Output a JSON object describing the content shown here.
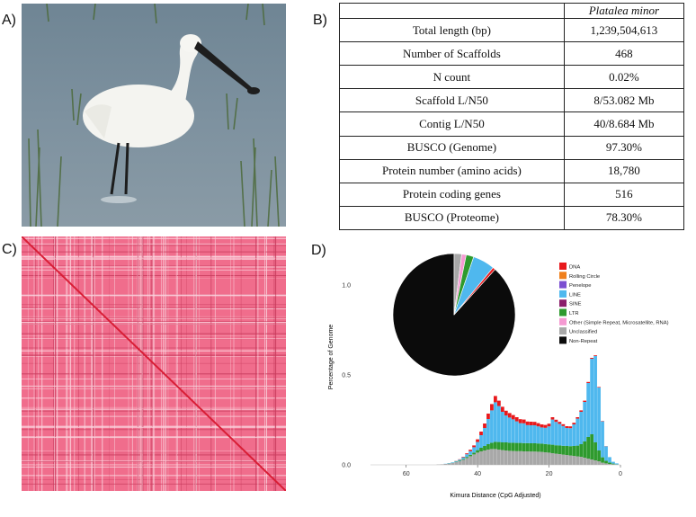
{
  "panels": {
    "a": "A)",
    "b": "B)",
    "c": "C)",
    "d": "D)"
  },
  "table": {
    "header_species": "Platalea minor",
    "rows": [
      {
        "metric": "Total length  (bp)",
        "value": "1,239,504,613"
      },
      {
        "metric": "Number of Scaffolds",
        "value": "468"
      },
      {
        "metric": "N count",
        "value": "0.02%"
      },
      {
        "metric": "Scaffold  L/N50",
        "value": "8/53.082 Mb"
      },
      {
        "metric": "Contig  L/N50",
        "value": "40/8.684 Mb"
      },
      {
        "metric": "BUSCO (Genome)",
        "value": "97.30%"
      },
      {
        "metric": "Protein number  (amino acids)",
        "value": "18,780"
      },
      {
        "metric": "Protein coding genes",
        "value": "516"
      },
      {
        "metric": "BUSCO (Proteome)",
        "value": "78.30%"
      }
    ]
  },
  "chart_data": {
    "type": "bar",
    "stacked": true,
    "xlabel": "Kimura Distance (CpG Adjusted)",
    "ylabel": "Percentage of Genome",
    "xlim": [
      70,
      0
    ],
    "ylim": [
      0,
      1.15
    ],
    "x_ticks": [
      "60",
      "40",
      "20",
      "0"
    ],
    "y_ticks": [
      "0.0",
      "0.5",
      "1.0"
    ],
    "legend_position": "right",
    "x": [
      51,
      50,
      49,
      48,
      47,
      46,
      45,
      44,
      43,
      42,
      41,
      40,
      39,
      38,
      37,
      36,
      35,
      34,
      33,
      32,
      31,
      30,
      29,
      28,
      27,
      26,
      25,
      24,
      23,
      22,
      21,
      20,
      19,
      18,
      17,
      16,
      15,
      14,
      13,
      12,
      11,
      10,
      9,
      8,
      7,
      6,
      5,
      4,
      3,
      2,
      1
    ],
    "series": [
      {
        "name": "Unclassified",
        "color": "#a8a8a8",
        "values": [
          0.002,
          0.003,
          0.005,
          0.007,
          0.01,
          0.015,
          0.02,
          0.028,
          0.038,
          0.048,
          0.058,
          0.068,
          0.075,
          0.08,
          0.085,
          0.088,
          0.088,
          0.085,
          0.082,
          0.08,
          0.078,
          0.077,
          0.076,
          0.076,
          0.075,
          0.075,
          0.074,
          0.074,
          0.073,
          0.072,
          0.07,
          0.068,
          0.065,
          0.062,
          0.06,
          0.057,
          0.055,
          0.052,
          0.05,
          0.047,
          0.045,
          0.04,
          0.035,
          0.03,
          0.025,
          0.02,
          0.012,
          0.008,
          0.005,
          0.003,
          0.001
        ]
      },
      {
        "name": "LTR",
        "color": "#2e9a2e",
        "values": [
          0.0,
          0.0,
          0.0,
          0.001,
          0.001,
          0.002,
          0.003,
          0.004,
          0.006,
          0.008,
          0.01,
          0.014,
          0.02,
          0.025,
          0.03,
          0.035,
          0.04,
          0.042,
          0.043,
          0.045,
          0.045,
          0.046,
          0.046,
          0.046,
          0.046,
          0.046,
          0.046,
          0.046,
          0.046,
          0.046,
          0.046,
          0.046,
          0.047,
          0.047,
          0.048,
          0.049,
          0.05,
          0.052,
          0.055,
          0.06,
          0.07,
          0.09,
          0.12,
          0.14,
          0.1,
          0.06,
          0.03,
          0.015,
          0.008,
          0.004,
          0.002
        ]
      },
      {
        "name": "LINE",
        "color": "#4fb8ee",
        "values": [
          0.0,
          0.0,
          0.001,
          0.002,
          0.003,
          0.004,
          0.006,
          0.01,
          0.015,
          0.02,
          0.03,
          0.045,
          0.07,
          0.1,
          0.14,
          0.18,
          0.22,
          0.2,
          0.17,
          0.15,
          0.14,
          0.13,
          0.12,
          0.11,
          0.11,
          0.1,
          0.1,
          0.1,
          0.095,
          0.09,
          0.09,
          0.1,
          0.14,
          0.13,
          0.12,
          0.11,
          0.1,
          0.1,
          0.12,
          0.15,
          0.18,
          0.22,
          0.3,
          0.42,
          0.48,
          0.35,
          0.2,
          0.08,
          0.03,
          0.01,
          0.005
        ]
      },
      {
        "name": "DNA",
        "color": "#e8191c",
        "values": [
          0.0,
          0.0,
          0.0,
          0.0,
          0.0,
          0.001,
          0.002,
          0.003,
          0.005,
          0.008,
          0.01,
          0.015,
          0.02,
          0.025,
          0.03,
          0.035,
          0.035,
          0.03,
          0.028,
          0.026,
          0.025,
          0.024,
          0.023,
          0.022,
          0.021,
          0.02,
          0.02,
          0.019,
          0.018,
          0.017,
          0.016,
          0.015,
          0.013,
          0.012,
          0.011,
          0.01,
          0.01,
          0.01,
          0.009,
          0.008,
          0.008,
          0.007,
          0.006,
          0.005,
          0.004,
          0.003,
          0.002,
          0.001,
          0.0,
          0.0,
          0.0
        ]
      }
    ],
    "legend": [
      {
        "label": "DNA",
        "color": "#e8191c"
      },
      {
        "label": "Rolling Circle",
        "color": "#f07f1b"
      },
      {
        "label": "Penelope",
        "color": "#7b4fd1"
      },
      {
        "label": "LINE",
        "color": "#4fb8ee"
      },
      {
        "label": "SINE",
        "color": "#8a1e6a"
      },
      {
        "label": "LTR",
        "color": "#2e9a2e"
      },
      {
        "label": "Other (Simple Repeat, Microsatellite, RNA)",
        "color": "#f59ad2"
      },
      {
        "label": "Unclassified",
        "color": "#a8a8a8"
      },
      {
        "label": "Non-Repeat",
        "color": "#0b0b0b"
      }
    ],
    "pie": [
      {
        "label": "Non-Repeat",
        "value": 0.883,
        "color": "#0b0b0b"
      },
      {
        "label": "Unclassified",
        "value": 0.02,
        "color": "#a8a8a8"
      },
      {
        "label": "Other (Simple Repeat, Microsatellite, RNA)",
        "value": 0.012,
        "color": "#f59ad2"
      },
      {
        "label": "LTR",
        "value": 0.02,
        "color": "#2e9a2e"
      },
      {
        "label": "LINE",
        "value": 0.058,
        "color": "#4fb8ee"
      },
      {
        "label": "DNA",
        "value": 0.007,
        "color": "#e8191c"
      }
    ]
  }
}
